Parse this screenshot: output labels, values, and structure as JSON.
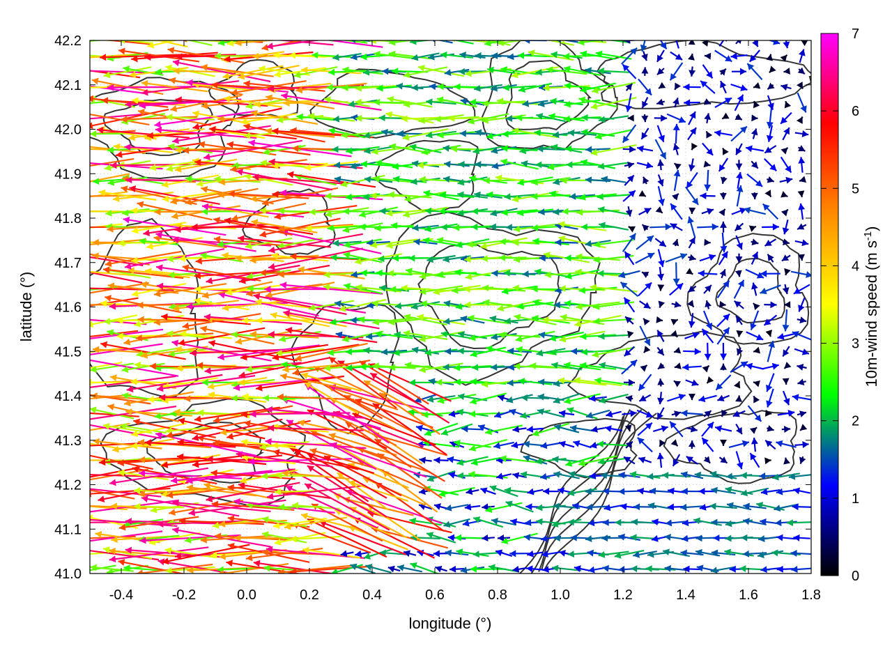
{
  "chart_data": {
    "type": "vector-field",
    "xlabel": "longitude (°)",
    "ylabel": "latitude (°)",
    "xlim": [
      -0.5,
      1.8
    ],
    "ylim": [
      41.0,
      42.2
    ],
    "xticks": [
      "-0.4",
      "-0.2",
      "0.0",
      "0.2",
      "0.4",
      "0.6",
      "0.8",
      "1.0",
      "1.2",
      "1.4",
      "1.6",
      "1.8"
    ],
    "xtick_values": [
      -0.4,
      -0.2,
      0.0,
      0.2,
      0.4,
      0.6,
      0.8,
      1.0,
      1.2,
      1.4,
      1.6,
      1.8
    ],
    "yticks": [
      "41.0",
      "41.1",
      "41.2",
      "41.3",
      "41.4",
      "41.5",
      "41.6",
      "41.7",
      "41.8",
      "41.9",
      "42.0",
      "42.1",
      "42.2"
    ],
    "ytick_values": [
      41.0,
      41.1,
      41.2,
      41.3,
      41.4,
      41.5,
      41.6,
      41.7,
      41.8,
      41.9,
      42.0,
      42.1,
      42.2
    ],
    "grid": true,
    "colorbar": {
      "label": "10m-wind speed (m s-1)",
      "label_main": "10m-wind speed (m s",
      "label_sup": "-1",
      "label_end": ")",
      "ticks": [
        "0",
        "1",
        "2",
        "3",
        "4",
        "5",
        "6",
        "7"
      ],
      "tick_values": [
        0,
        1,
        2,
        3,
        4,
        5,
        6,
        7
      ],
      "range": [
        0,
        7
      ],
      "colors": [
        "#000000",
        "#0000ff",
        "#00ff00",
        "#ffff00",
        "#ff8c00",
        "#ff0000",
        "#ff00ff"
      ]
    },
    "field": {
      "grid_lon_step": 0.05,
      "grid_lat_step": 0.035,
      "dominant_direction": "westward (easterly wind)",
      "regions": [
        {
          "lon_range": [
            -0.5,
            0.3
          ],
          "lat_range": [
            41.0,
            42.2
          ],
          "speed_range": [
            2.5,
            6.8
          ],
          "direction_deg": 180
        },
        {
          "lon_range": [
            0.3,
            1.2
          ],
          "lat_range": [
            41.4,
            42.2
          ],
          "speed_range": [
            1.5,
            3.2
          ],
          "direction_deg": 180
        },
        {
          "lon_range": [
            0.25,
            0.55
          ],
          "lat_range": [
            41.05,
            41.45
          ],
          "speed_range": [
            4.0,
            6.8
          ],
          "direction_deg": 155
        },
        {
          "lon_range": [
            0.9,
            1.8
          ],
          "lat_range": [
            41.0,
            41.25
          ],
          "speed_range": [
            1.0,
            2.0
          ],
          "direction_deg": 180
        },
        {
          "lon_range": [
            1.2,
            1.8
          ],
          "lat_range": [
            41.25,
            42.2
          ],
          "speed_range": [
            0.1,
            1.5
          ],
          "direction_deg": "variable"
        }
      ]
    },
    "contours": "terrain elevation isolines (dark gray)"
  }
}
